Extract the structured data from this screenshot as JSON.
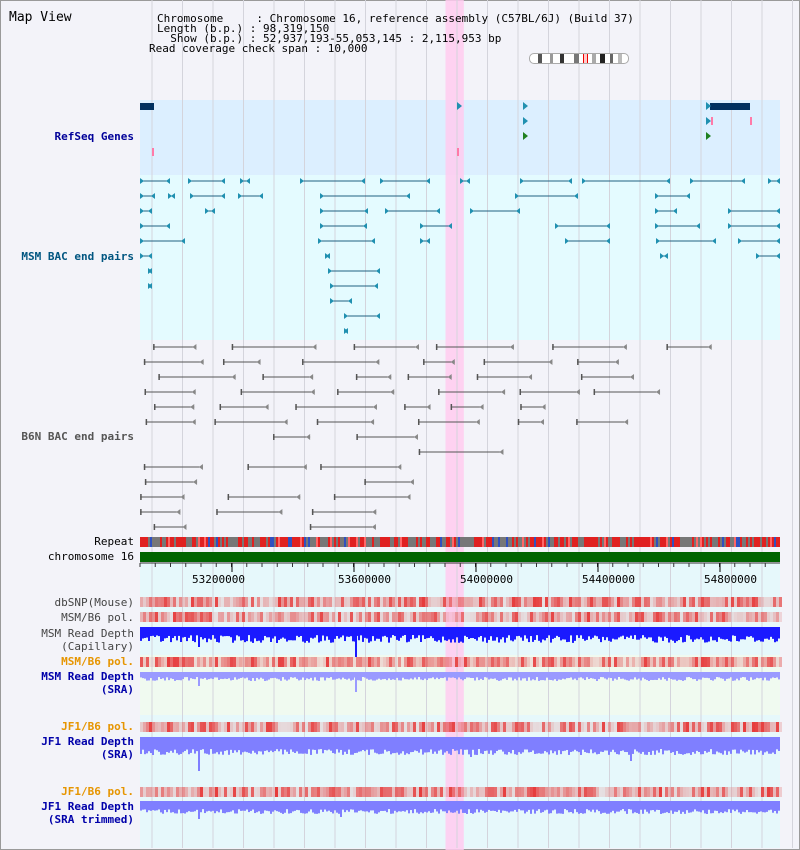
{
  "title": "Map View",
  "info": {
    "chromosome": "Chromosome     : Chromosome 16, reference assembly (C57BL/6J) (Build 37)",
    "length": "Length (b.p.) : 98,319,150",
    "show": "  Show (b.p.) : 52,937,193-55,053,145 : 2,115,953 bp",
    "coverage": "Read coverage check span : 10,000"
  },
  "tracks": {
    "refseq": "RefSeq Genes",
    "msm_bac": "MSM BAC end pairs",
    "b6n_bac": "B6N BAC end pairs",
    "repeat": "Repeat",
    "chromosome": "chromosome 16",
    "dbsnp": "dbSNP(Mouse)",
    "msm_b6_pol": "MSM/B6 pol.",
    "msm_depth_cap_1": "MSM Read Depth",
    "msm_depth_cap_2": "(Capillary)",
    "msm_depth_sra_1": "MSM Read Depth",
    "msm_depth_sra_2": "(SRA)",
    "jf1_b6_pol": "JF1/B6 pol.",
    "jf1_depth_sra_1": "JF1 Read Depth",
    "jf1_depth_sra_2": "(SRA)",
    "jf1_depth_trim_1": "JF1 Read Depth",
    "jf1_depth_trim_2": "(SRA trimmed)"
  },
  "axis": {
    "ticks": [
      "53200000",
      "53600000",
      "54000000",
      "54400000",
      "54800000"
    ]
  },
  "colors": {
    "refseq_bg": "#dcefff",
    "msm_bg": "#e4fbff",
    "b6n_bg": "#f3f3f9",
    "highlight": "#ffcbf0",
    "repeat_red": "#e02020",
    "chromosome_green": "#006400",
    "depth_blue": "#1a1aff",
    "depth_lightblue": "#7f7fff",
    "pol_pink": "#f4a0a0"
  },
  "highlight_region": {
    "start": 53900000,
    "end": 53960000
  }
}
